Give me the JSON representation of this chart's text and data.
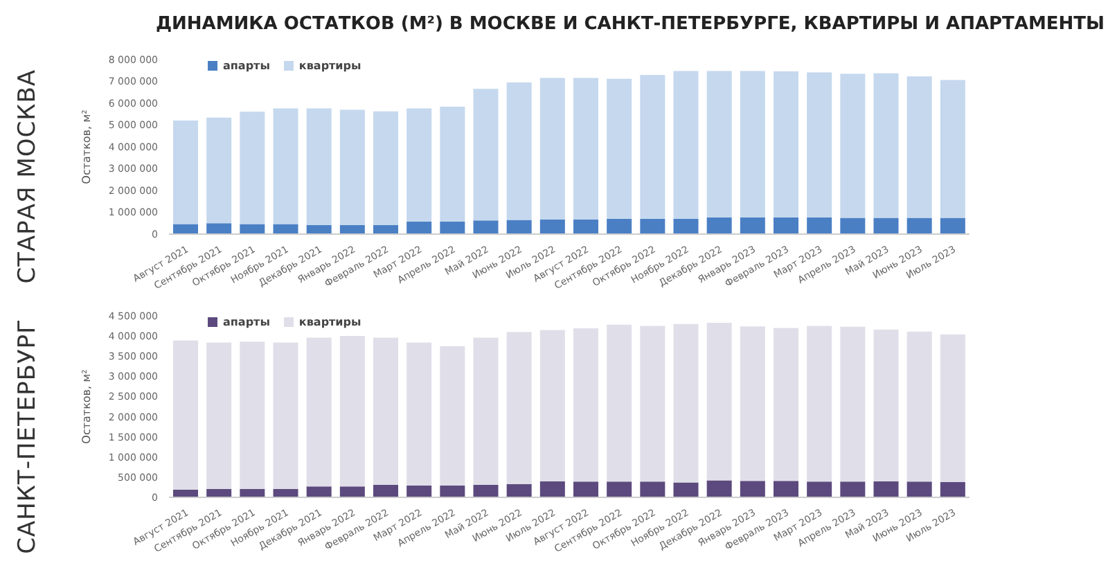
{
  "chart_data": [
    {
      "type": "bar",
      "title": "ДИНАМИКА ОСТАТКОВ (М²) В МОСКВЕ И САНКТ-ПЕТЕРБУРГЕ, КВАРТИРЫ И АПАРТАМЕНТЫ",
      "subtitle": "СТАРАЯ МОСКВА",
      "ylabel": "Остатков, м²",
      "stacked": true,
      "legend": "top left",
      "categories": [
        "Август 2021",
        "Сентябрь 2021",
        "Октябрь 2021",
        "Ноябрь 2021",
        "Декабрь 2021",
        "Январь 2022",
        "Февраль 2022",
        "Март 2022",
        "Апрель 2022",
        "Май 2022",
        "Июнь 2022",
        "Июль 2022",
        "Август 2022",
        "Сентябрь 2022",
        "Октябрь 2022",
        "Ноябрь 2022",
        "Декабрь 2022",
        "Январь 2023",
        "Февраль 2023",
        "Март 2023",
        "Апрель 2023",
        "Май 2023",
        "Июнь 2023",
        "Июль 2023"
      ],
      "series": [
        {
          "name": "апарты",
          "color": "#4a7fc4",
          "values": [
            460000,
            500000,
            460000,
            460000,
            420000,
            420000,
            420000,
            570000,
            570000,
            630000,
            650000,
            670000,
            670000,
            710000,
            710000,
            700000,
            770000,
            770000,
            770000,
            770000,
            750000,
            750000,
            750000,
            750000
          ]
        },
        {
          "name": "квартиры",
          "color": "#c5d8ee",
          "values": [
            4750000,
            4840000,
            5150000,
            5300000,
            5340000,
            5280000,
            5210000,
            5190000,
            5270000,
            6030000,
            6300000,
            6490000,
            6490000,
            6410000,
            6580000,
            6780000,
            6710000,
            6710000,
            6690000,
            6640000,
            6600000,
            6620000,
            6480000,
            6310000
          ]
        }
      ],
      "ylim": [
        0,
        8000000
      ],
      "yticks": [
        {
          "value": 0,
          "label": "0"
        },
        {
          "value": 1000000,
          "label": "1 000 000"
        },
        {
          "value": 2000000,
          "label": "2 000 000"
        },
        {
          "value": 3000000,
          "label": "3 000 000"
        },
        {
          "value": 4000000,
          "label": "4 000 000"
        },
        {
          "value": 5000000,
          "label": "5 000 000"
        },
        {
          "value": 6000000,
          "label": "6 000 000"
        },
        {
          "value": 7000000,
          "label": "7 000 000"
        },
        {
          "value": 8000000,
          "label": "8 000 000"
        }
      ]
    },
    {
      "type": "bar",
      "subtitle": "САНКТ-ПЕТЕРБУРГ",
      "ylabel": "Остатков, м²",
      "stacked": true,
      "legend": "top left",
      "categories": [
        "Август 2021",
        "Сентябрь 2021",
        "Октябрь 2021",
        "Ноябрь 2021",
        "Декабрь 2021",
        "Январь 2022",
        "Февраль 2022",
        "Март 2022",
        "Апрель 2022",
        "Май 2022",
        "Июнь 2022",
        "Июль 2022",
        "Август 2022",
        "Сентябрь 2022",
        "Октябрь 2022",
        "Ноябрь 2022",
        "Декабрь 2022",
        "Январь 2023",
        "Февраль 2023",
        "Март 2023",
        "Апрель 2023",
        "Май 2023",
        "Июнь 2023",
        "Июль 2023"
      ],
      "series": [
        {
          "name": "апарты",
          "color": "#5c4a7e",
          "values": [
            190000,
            210000,
            210000,
            210000,
            270000,
            270000,
            310000,
            290000,
            290000,
            310000,
            330000,
            400000,
            390000,
            390000,
            390000,
            370000,
            420000,
            410000,
            410000,
            390000,
            390000,
            400000,
            390000,
            380000
          ]
        },
        {
          "name": "квартиры",
          "color": "#e0dfe9",
          "values": [
            3700000,
            3630000,
            3650000,
            3630000,
            3690000,
            3730000,
            3650000,
            3550000,
            3460000,
            3650000,
            3770000,
            3750000,
            3800000,
            3890000,
            3860000,
            3930000,
            3910000,
            3830000,
            3790000,
            3860000,
            3840000,
            3760000,
            3720000,
            3660000
          ]
        }
      ],
      "ylim": [
        0,
        4500000
      ],
      "yticks": [
        {
          "value": 0,
          "label": "0"
        },
        {
          "value": 500000,
          "label": "500 000"
        },
        {
          "value": 1000000,
          "label": "1 000 000"
        },
        {
          "value": 1500000,
          "label": "1 500 000"
        },
        {
          "value": 2000000,
          "label": "2 000 000"
        },
        {
          "value": 2500000,
          "label": "2 500 000"
        },
        {
          "value": 3000000,
          "label": "3 000 000"
        },
        {
          "value": 3500000,
          "label": "3 500 000"
        },
        {
          "value": 4000000,
          "label": "4 000 000"
        },
        {
          "value": 4500000,
          "label": "4 500 000"
        }
      ]
    }
  ]
}
